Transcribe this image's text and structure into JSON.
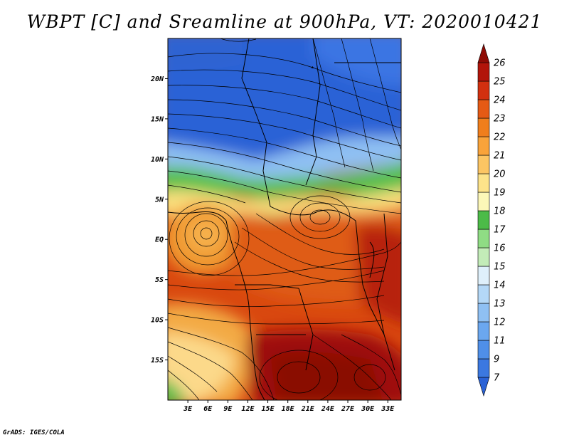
{
  "title": "WBPT [C] and Sreamline at 900hPa, VT: 2020010421",
  "credit": "GrADS: IGES/COLA",
  "lat_labels": [
    "20N",
    "15N",
    "10N",
    "5N",
    "EQ",
    "5S",
    "10S",
    "15S"
  ],
  "lat_values": [
    20,
    15,
    10,
    5,
    0,
    -5,
    -10,
    -15
  ],
  "lon_labels": [
    "3E",
    "6E",
    "9E",
    "12E",
    "15E",
    "18E",
    "21E",
    "24E",
    "27E",
    "30E",
    "33E"
  ],
  "lon_values": [
    3,
    6,
    9,
    12,
    15,
    18,
    21,
    24,
    27,
    30,
    33
  ],
  "extent": {
    "lon_min": 0,
    "lon_max": 35,
    "lat_min": -20,
    "lat_max": 25
  },
  "colorbar": {
    "labels": [
      "7",
      "9",
      "11",
      "12",
      "13",
      "14",
      "15",
      "16",
      "17",
      "18",
      "19",
      "20",
      "21",
      "22",
      "23",
      "24",
      "25",
      "26"
    ],
    "colors": [
      "#2a62d6",
      "#3b78e0",
      "#4f8fe8",
      "#6ba7ef",
      "#8fc0f3",
      "#b4d8f7",
      "#dff0fb",
      "#c3ecb8",
      "#8fdc84",
      "#4cbb48",
      "#fcf7b8",
      "#fde38a",
      "#fcc563",
      "#f9a33a",
      "#f07e1c",
      "#e55a14",
      "#d2300f",
      "#b2140a",
      "#8f0b05"
    ]
  },
  "map": {
    "description_colors": {
      "cold": "#2a62d6",
      "green": "#4cbb48",
      "warm": "#f07e1c",
      "hot": "#b2140a"
    }
  }
}
